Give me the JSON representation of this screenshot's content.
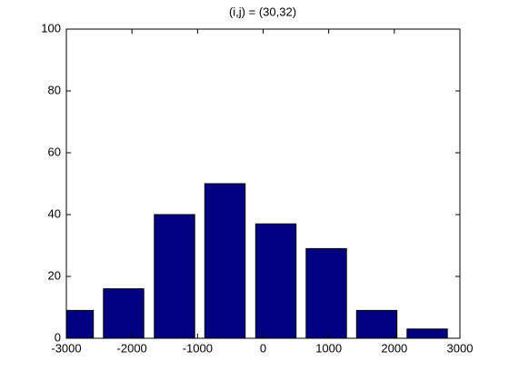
{
  "chart_data": {
    "type": "bar",
    "title": "(i,j) = (30,32)",
    "x": [
      -2896,
      -2127,
      -1351,
      -582,
      194,
      963,
      1732,
      2501
    ],
    "values": [
      9,
      16,
      40,
      50,
      37,
      29,
      9,
      3
    ],
    "color": "#000080",
    "xlim": [
      -3000,
      3000
    ],
    "xticks": [
      -3000,
      -2000,
      -1000,
      0,
      1000,
      2000,
      3000
    ],
    "ylim": [
      0,
      100
    ],
    "yticks": [
      0,
      20,
      40,
      60,
      80,
      100
    ]
  }
}
